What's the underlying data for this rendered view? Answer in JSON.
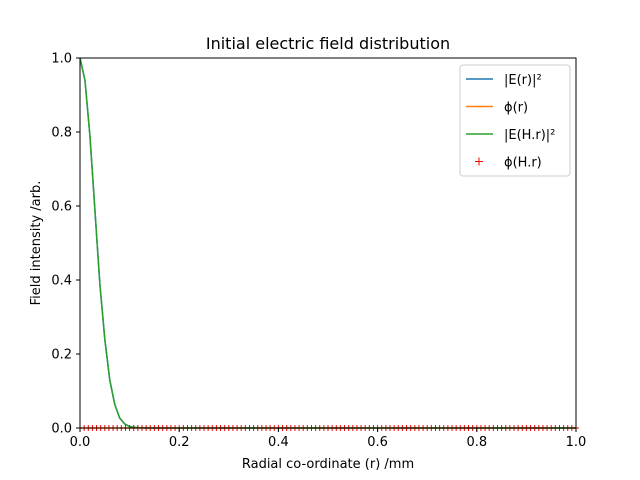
{
  "chart_data": {
    "type": "line",
    "title": "Initial electric field distribution",
    "xlabel": "Radial co-ordinate (r) /mm",
    "ylabel": "Field intensity /arb.",
    "xlim": [
      0.0,
      1.0
    ],
    "ylim": [
      0.0,
      1.0
    ],
    "xticks": [
      "0.0",
      "0.2",
      "0.4",
      "0.6",
      "0.8",
      "1.0"
    ],
    "yticks": [
      "0.0",
      "0.2",
      "0.4",
      "0.6",
      "0.8",
      "1.0"
    ],
    "grid": false,
    "legend_position": "top-right",
    "series": [
      {
        "name": "|E(r)|²",
        "style": "line",
        "color": "#1f77b4",
        "x": [
          0,
          0.01,
          0.02,
          0.03,
          0.04,
          0.05,
          0.06,
          0.07,
          0.08,
          0.09,
          0.1,
          0.11,
          0.12,
          0.13,
          0.14,
          0.15,
          0.2,
          0.4,
          0.6,
          0.8,
          1.0
        ],
        "y": [
          1.0,
          0.94,
          0.79,
          0.59,
          0.39,
          0.24,
          0.13,
          0.064,
          0.027,
          0.011,
          0.004,
          0.0016,
          0.0005,
          0.0002,
          0.0001,
          0.0,
          0.0,
          0.0,
          0.0,
          0.0,
          0.0
        ]
      },
      {
        "name": "ϕ(r)",
        "style": "line",
        "color": "#ff7f0e",
        "x": [
          0,
          0.2,
          0.4,
          0.6,
          0.8,
          1.0
        ],
        "y": [
          0.0,
          0.0,
          0.0,
          0.0,
          0.0,
          0.0
        ]
      },
      {
        "name": "|E(H.r)|²",
        "style": "line",
        "color": "#2ca02c",
        "x": [
          0,
          0.01,
          0.02,
          0.03,
          0.04,
          0.05,
          0.06,
          0.07,
          0.08,
          0.09,
          0.1,
          0.11,
          0.12,
          0.13,
          0.14,
          0.15,
          0.2,
          0.4,
          0.6,
          0.8,
          1.0
        ],
        "y": [
          1.0,
          0.94,
          0.79,
          0.59,
          0.39,
          0.24,
          0.13,
          0.064,
          0.027,
          0.011,
          0.004,
          0.0016,
          0.0005,
          0.0002,
          0.0001,
          0.0,
          0.0,
          0.0,
          0.0,
          0.0,
          0.0
        ]
      },
      {
        "name": "ϕ(H.r)",
        "style": "markers",
        "marker": "+",
        "color": "#ff0000",
        "x_range": [
          0.0,
          1.0
        ],
        "point_count": 121,
        "y": 0.0
      }
    ]
  }
}
